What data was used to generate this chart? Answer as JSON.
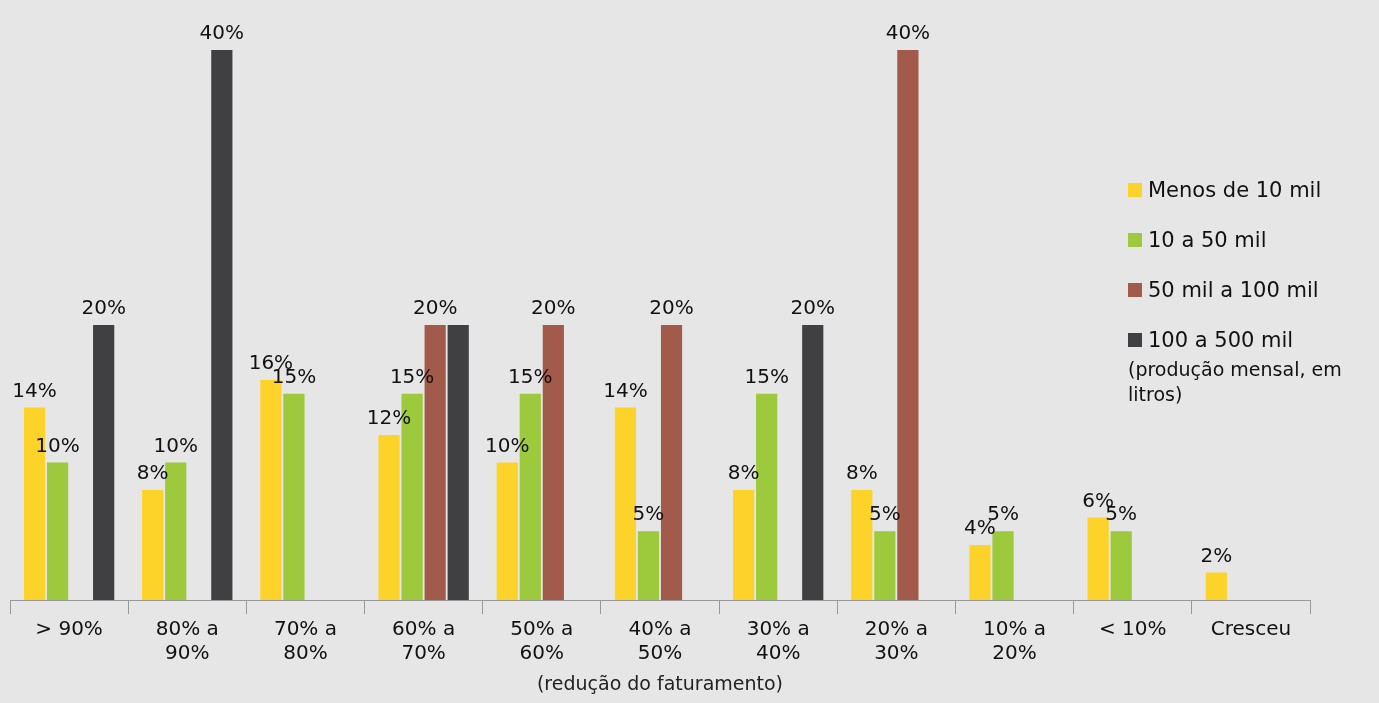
{
  "chart_data": {
    "type": "bar",
    "xlabel": "(redução do faturamento)",
    "legend_title": "(produção mensal, em litros)",
    "legend": "right",
    "categories": [
      "> 90%",
      "80% a 90%",
      "70% a 80%",
      "60% a 70%",
      "50% a 60%",
      "40% a 50%",
      "30% a 40%",
      "20% a 30%",
      "10% a 20%",
      "< 10%",
      "Cresceu"
    ],
    "series": [
      {
        "name": "Menos de 10 mil",
        "color": "#fdd32a",
        "values": [
          14,
          8,
          16,
          12,
          10,
          14,
          8,
          8,
          4,
          6,
          2
        ],
        "value_labels": [
          "14%",
          "8%",
          "16%",
          "12%",
          "10%",
          "14%",
          "8%",
          "8%",
          "4%",
          "6%",
          "2%"
        ]
      },
      {
        "name": "10 a 50 mil",
        "color": "#9dc93c",
        "values": [
          10,
          10,
          15,
          15,
          15,
          5,
          15,
          5,
          5,
          5,
          null
        ],
        "value_labels": [
          "10%",
          "10%",
          "15%",
          "15%",
          "15%",
          "5%",
          "15%",
          "5%",
          "5%",
          "5%",
          null
        ]
      },
      {
        "name": "50 mil a 100 mil",
        "color": "#a25a4b",
        "values": [
          null,
          null,
          null,
          20,
          20,
          20,
          null,
          40,
          null,
          null,
          null
        ],
        "value_labels": [
          null,
          null,
          null,
          "20%",
          "20%",
          "20%",
          null,
          "40%",
          null,
          null,
          null
        ]
      },
      {
        "name": "100 a 500 mil",
        "color": "#404042",
        "values": [
          20,
          40,
          null,
          20,
          null,
          null,
          20,
          null,
          null,
          null,
          null
        ],
        "value_labels": [
          "20%",
          "40%",
          null,
          null,
          null,
          null,
          "20%",
          null,
          null,
          null,
          null
        ]
      }
    ]
  }
}
